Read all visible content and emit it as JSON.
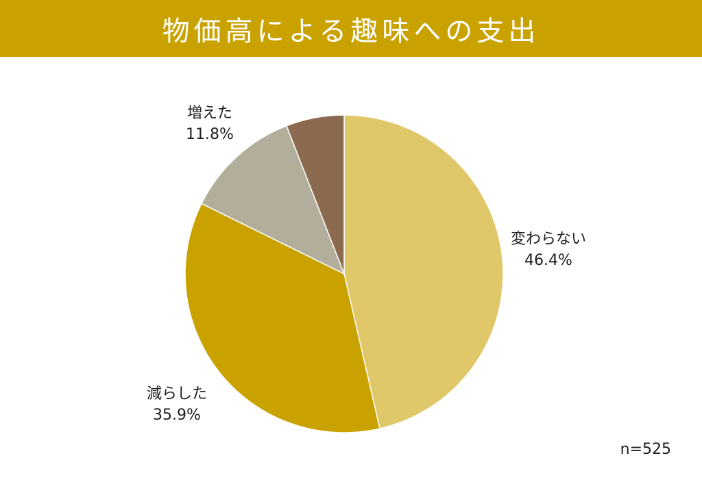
{
  "header": {
    "title": "物価高による趣味への支出"
  },
  "sample": {
    "text": "n=525"
  },
  "chart_data": {
    "type": "pie",
    "title": "物価高による趣味への支出",
    "slices": [
      {
        "label": "変わらない",
        "value": 46.4,
        "display": "46.4%",
        "color": "#e0c86a"
      },
      {
        "label": "減らした",
        "value": 35.9,
        "display": "35.9%",
        "color": "#c9a200"
      },
      {
        "label": "増えた",
        "value": 11.8,
        "display": "11.8%",
        "color": "#b3ad9b"
      },
      {
        "label": "",
        "value": 5.9,
        "display": "",
        "color": "#8b6a4f"
      }
    ]
  }
}
